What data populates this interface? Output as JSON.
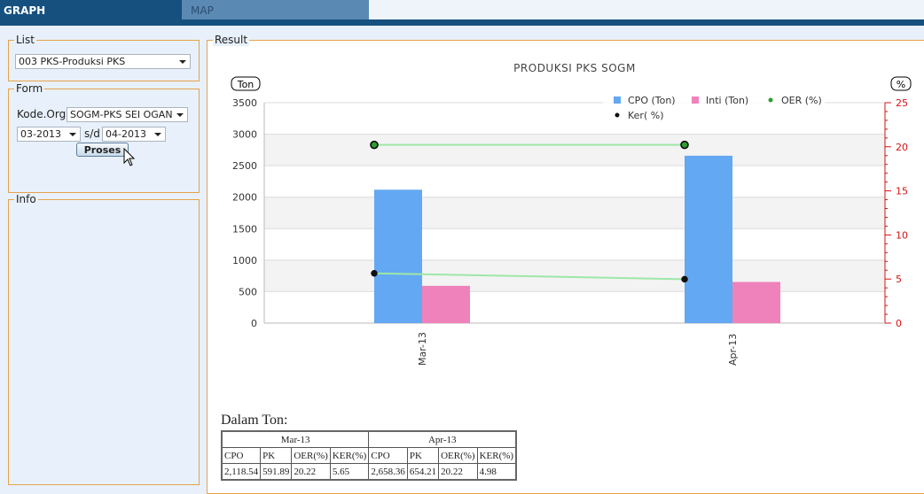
{
  "tabs": {
    "graph": "GRAPH",
    "map": "MAP"
  },
  "list": {
    "legend": "List",
    "selected": "003 PKS-Produksi PKS"
  },
  "form": {
    "legend": "Form",
    "kode_org_label": "Kode.Org",
    "kode_org_value": "SOGM-PKS SEI OGAN",
    "from_period": "03-2013",
    "sd_label": "s/d",
    "to_period": "04-2013",
    "submit_label": "Proses"
  },
  "info": {
    "legend": "Info"
  },
  "result": {
    "legend": "Result"
  },
  "chart_data": {
    "type": "bar",
    "title": "PRODUKSI PKS SOGM",
    "categories": [
      "Mar-13",
      "Apr-13"
    ],
    "left_axis": {
      "label": "Ton",
      "ylim": [
        0,
        3500
      ],
      "ticks": [
        "0",
        "500",
        "1000",
        "1500",
        "2000",
        "2500",
        "3000",
        "3500"
      ]
    },
    "right_axis": {
      "label": "%",
      "ylim": [
        0,
        25
      ],
      "ticks": [
        "0",
        "5",
        "10",
        "15",
        "20",
        "25"
      ]
    },
    "grid": true,
    "legend_position": "top-right",
    "series": [
      {
        "name": "CPO (Ton)",
        "kind": "bar",
        "axis": "left",
        "color": "#63a8f2",
        "values": [
          2118.54,
          2658.36
        ]
      },
      {
        "name": "Inti (Ton)",
        "kind": "bar",
        "axis": "left",
        "color": "#ef82bb",
        "values": [
          591.89,
          654.21
        ]
      },
      {
        "name": "OER (%)",
        "kind": "line",
        "axis": "right",
        "color": "#9ee7a8",
        "values": [
          20.22,
          20.22
        ]
      },
      {
        "name": "Ker( %)",
        "kind": "line",
        "axis": "right",
        "color": "#9ee7a8",
        "values": [
          5.65,
          4.98
        ]
      }
    ],
    "colors": {
      "right_axis": "#d81010",
      "grid_band": "#f3f3f3"
    }
  },
  "table": {
    "title": "Dalam Ton:",
    "periods": [
      "Mar-13",
      "Apr-13"
    ],
    "columns": [
      "CPO",
      "PK",
      "OER(%)",
      "KER(%)"
    ],
    "rows": [
      [
        "2,118.54",
        "591.89",
        "20.22",
        "5.65"
      ],
      [
        "2,658.36",
        "654.21",
        "20.22",
        "4.98"
      ]
    ]
  }
}
